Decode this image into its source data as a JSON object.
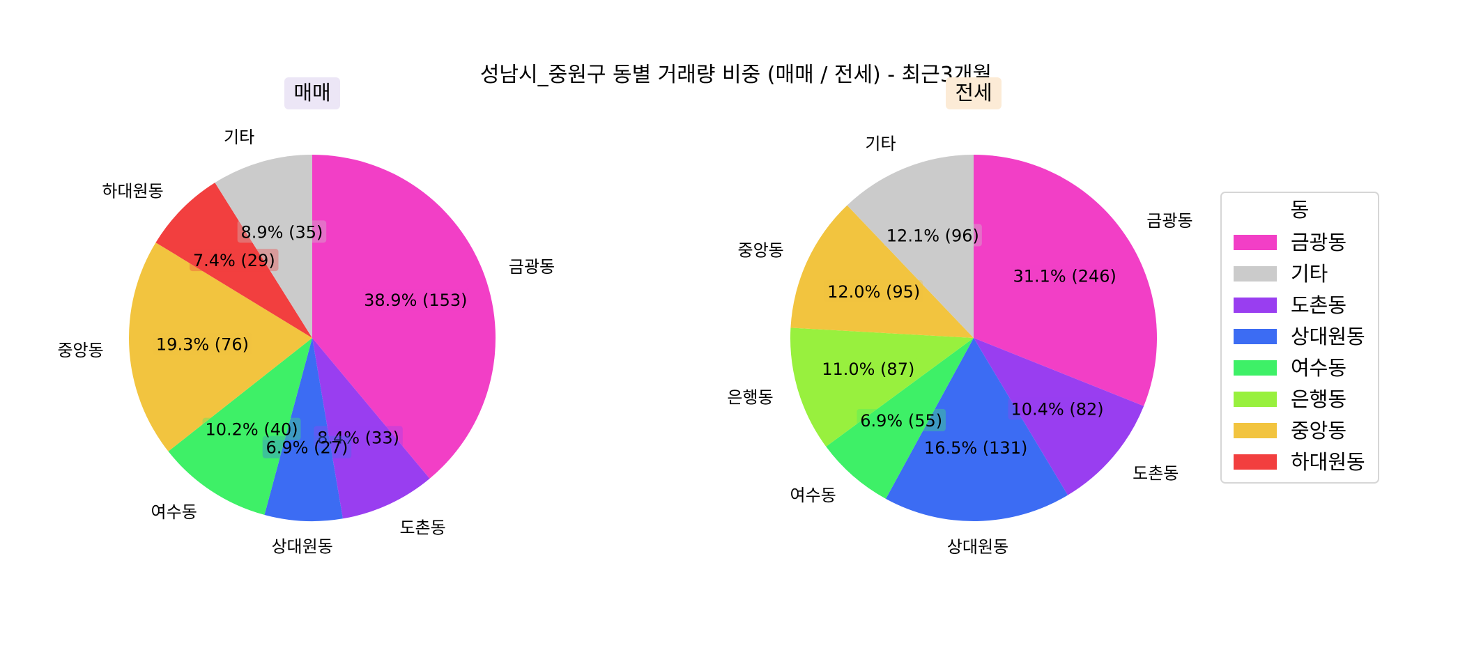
{
  "figure_title": "성남시_중원구 동별 거래량 비중 (매매 / 전세) - 최근3개월",
  "legend": {
    "title": "동",
    "entries": [
      {
        "label": "금광동",
        "color": "#f23fc6"
      },
      {
        "label": "기타",
        "color": "#cbcbcb"
      },
      {
        "label": "도촌동",
        "color": "#993ef0"
      },
      {
        "label": "상대원동",
        "color": "#3c6cf3"
      },
      {
        "label": "여수동",
        "color": "#3ef067"
      },
      {
        "label": "은행동",
        "color": "#98f03e"
      },
      {
        "label": "중앙동",
        "color": "#f2c43f"
      },
      {
        "label": "하대원동",
        "color": "#f23f3f"
      }
    ]
  },
  "chart_data": [
    {
      "type": "pie",
      "title": "매매",
      "title_bg": "#ece6f6",
      "start_angle_deg": 90,
      "direction": "clockwise",
      "slices": [
        {
          "label": "금광동",
          "value": 153,
          "percent": "38.9%",
          "color": "#f23fc6"
        },
        {
          "label": "도촌동",
          "value": 33,
          "percent": "8.4%",
          "color": "#993ef0"
        },
        {
          "label": "상대원동",
          "value": 27,
          "percent": "6.9%",
          "color": "#3c6cf3"
        },
        {
          "label": "여수동",
          "value": 40,
          "percent": "10.2%",
          "color": "#3ef067"
        },
        {
          "label": "중앙동",
          "value": 76,
          "percent": "19.3%",
          "color": "#f2c43f"
        },
        {
          "label": "하대원동",
          "value": 29,
          "percent": "7.4%",
          "color": "#f23f3f"
        },
        {
          "label": "기타",
          "value": 35,
          "percent": "8.9%",
          "color": "#cbcbcb"
        }
      ]
    },
    {
      "type": "pie",
      "title": "전세",
      "title_bg": "#fcebd6",
      "start_angle_deg": 90,
      "direction": "clockwise",
      "slices": [
        {
          "label": "금광동",
          "value": 246,
          "percent": "31.1%",
          "color": "#f23fc6"
        },
        {
          "label": "도촌동",
          "value": 82,
          "percent": "10.4%",
          "color": "#993ef0"
        },
        {
          "label": "상대원동",
          "value": 131,
          "percent": "16.5%",
          "color": "#3c6cf3"
        },
        {
          "label": "여수동",
          "value": 55,
          "percent": "6.9%",
          "color": "#3ef067"
        },
        {
          "label": "은행동",
          "value": 87,
          "percent": "11.0%",
          "color": "#98f03e"
        },
        {
          "label": "중앙동",
          "value": 95,
          "percent": "12.0%",
          "color": "#f2c43f"
        },
        {
          "label": "기타",
          "value": 96,
          "percent": "12.1%",
          "color": "#cbcbcb"
        }
      ]
    }
  ]
}
